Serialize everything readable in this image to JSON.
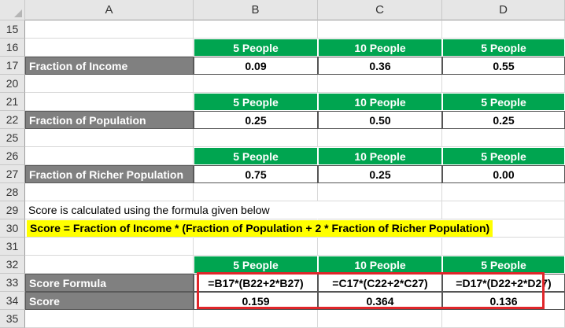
{
  "columns": [
    "A",
    "B",
    "C",
    "D"
  ],
  "rows": {
    "r15": {
      "num": "15"
    },
    "r16": {
      "num": "16",
      "b": "5 People",
      "c": "10 People",
      "d": "5 People"
    },
    "r17": {
      "num": "17",
      "a": "Fraction of Income",
      "b": "0.09",
      "c": "0.36",
      "d": "0.55"
    },
    "r20": {
      "num": "20"
    },
    "r21": {
      "num": "21",
      "b": "5 People",
      "c": "10 People",
      "d": "5 People"
    },
    "r22": {
      "num": "22",
      "a": "Fraction of Population",
      "b": "0.25",
      "c": "0.50",
      "d": "0.25"
    },
    "r25": {
      "num": "25"
    },
    "r26": {
      "num": "26",
      "b": "5 People",
      "c": "10 People",
      "d": "5 People"
    },
    "r27": {
      "num": "27",
      "a": "Fraction of Richer Population",
      "b": "0.75",
      "c": "0.25",
      "d": "0.00"
    },
    "r28": {
      "num": "28"
    },
    "r29": {
      "num": "29",
      "a": "Score is calculated using the formula  given below"
    },
    "r30": {
      "num": "30",
      "a": "Score = Fraction of Income * (Fraction of Population + 2 * Fraction of Richer Population)"
    },
    "r31": {
      "num": "31"
    },
    "r32": {
      "num": "32",
      "b": "5 People",
      "c": "10 People",
      "d": "5 People"
    },
    "r33": {
      "num": "33",
      "a": "Score Formula",
      "b": "=B17*(B22+2*B27)",
      "c": "=C17*(C22+2*C27)",
      "d": "=D17*(D22+2*D27)"
    },
    "r34": {
      "num": "34",
      "a": "Score",
      "b": "0.159",
      "c": "0.364",
      "d": "0.136"
    },
    "r35": {
      "num": "35"
    }
  },
  "colors": {
    "header_green": "#00a550",
    "label_gray": "#808080",
    "highlight_yellow": "#ffff00",
    "box_red": "#e0262a"
  }
}
